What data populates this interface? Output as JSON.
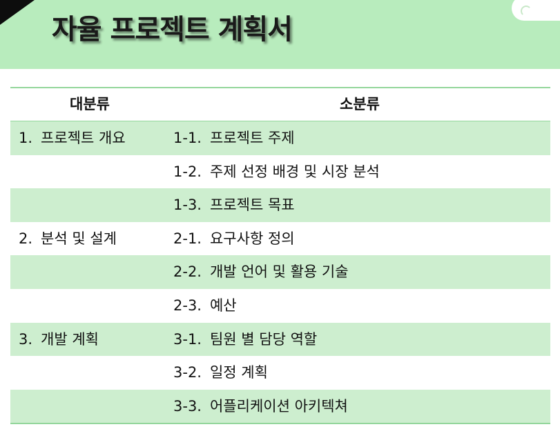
{
  "title": "자율 프로젝트 계획서",
  "colors": {
    "header_bg": "#b8ecbd",
    "row_shade": "#cdeecf",
    "rule": "#93d69b"
  },
  "table": {
    "headers": {
      "major": "대분류",
      "minor": "소분류"
    },
    "rows": [
      {
        "major_num": "1.",
        "major": "프로젝트 개요",
        "minor_num": "1-1.",
        "minor": "프로젝트 주제"
      },
      {
        "major_num": "",
        "major": "",
        "minor_num": "1-2.",
        "minor": "주제 선정 배경 및 시장 분석"
      },
      {
        "major_num": "",
        "major": "",
        "minor_num": "1-3.",
        "minor": "프로젝트 목표"
      },
      {
        "major_num": "2.",
        "major": "분석 및 설계",
        "minor_num": "2-1.",
        "minor": "요구사항 정의"
      },
      {
        "major_num": "",
        "major": "",
        "minor_num": "2-2.",
        "minor": "개발 언어 및 활용 기술"
      },
      {
        "major_num": "",
        "major": "",
        "minor_num": "2-3.",
        "minor": "예산"
      },
      {
        "major_num": "3.",
        "major": "개발 계획",
        "minor_num": "3-1.",
        "minor": "팀원 별 담당 역할"
      },
      {
        "major_num": "",
        "major": "",
        "minor_num": "3-2.",
        "minor": "일정 계획"
      },
      {
        "major_num": "",
        "major": "",
        "minor_num": "3-3.",
        "minor": "어플리케이션 아키텍쳐"
      }
    ]
  }
}
